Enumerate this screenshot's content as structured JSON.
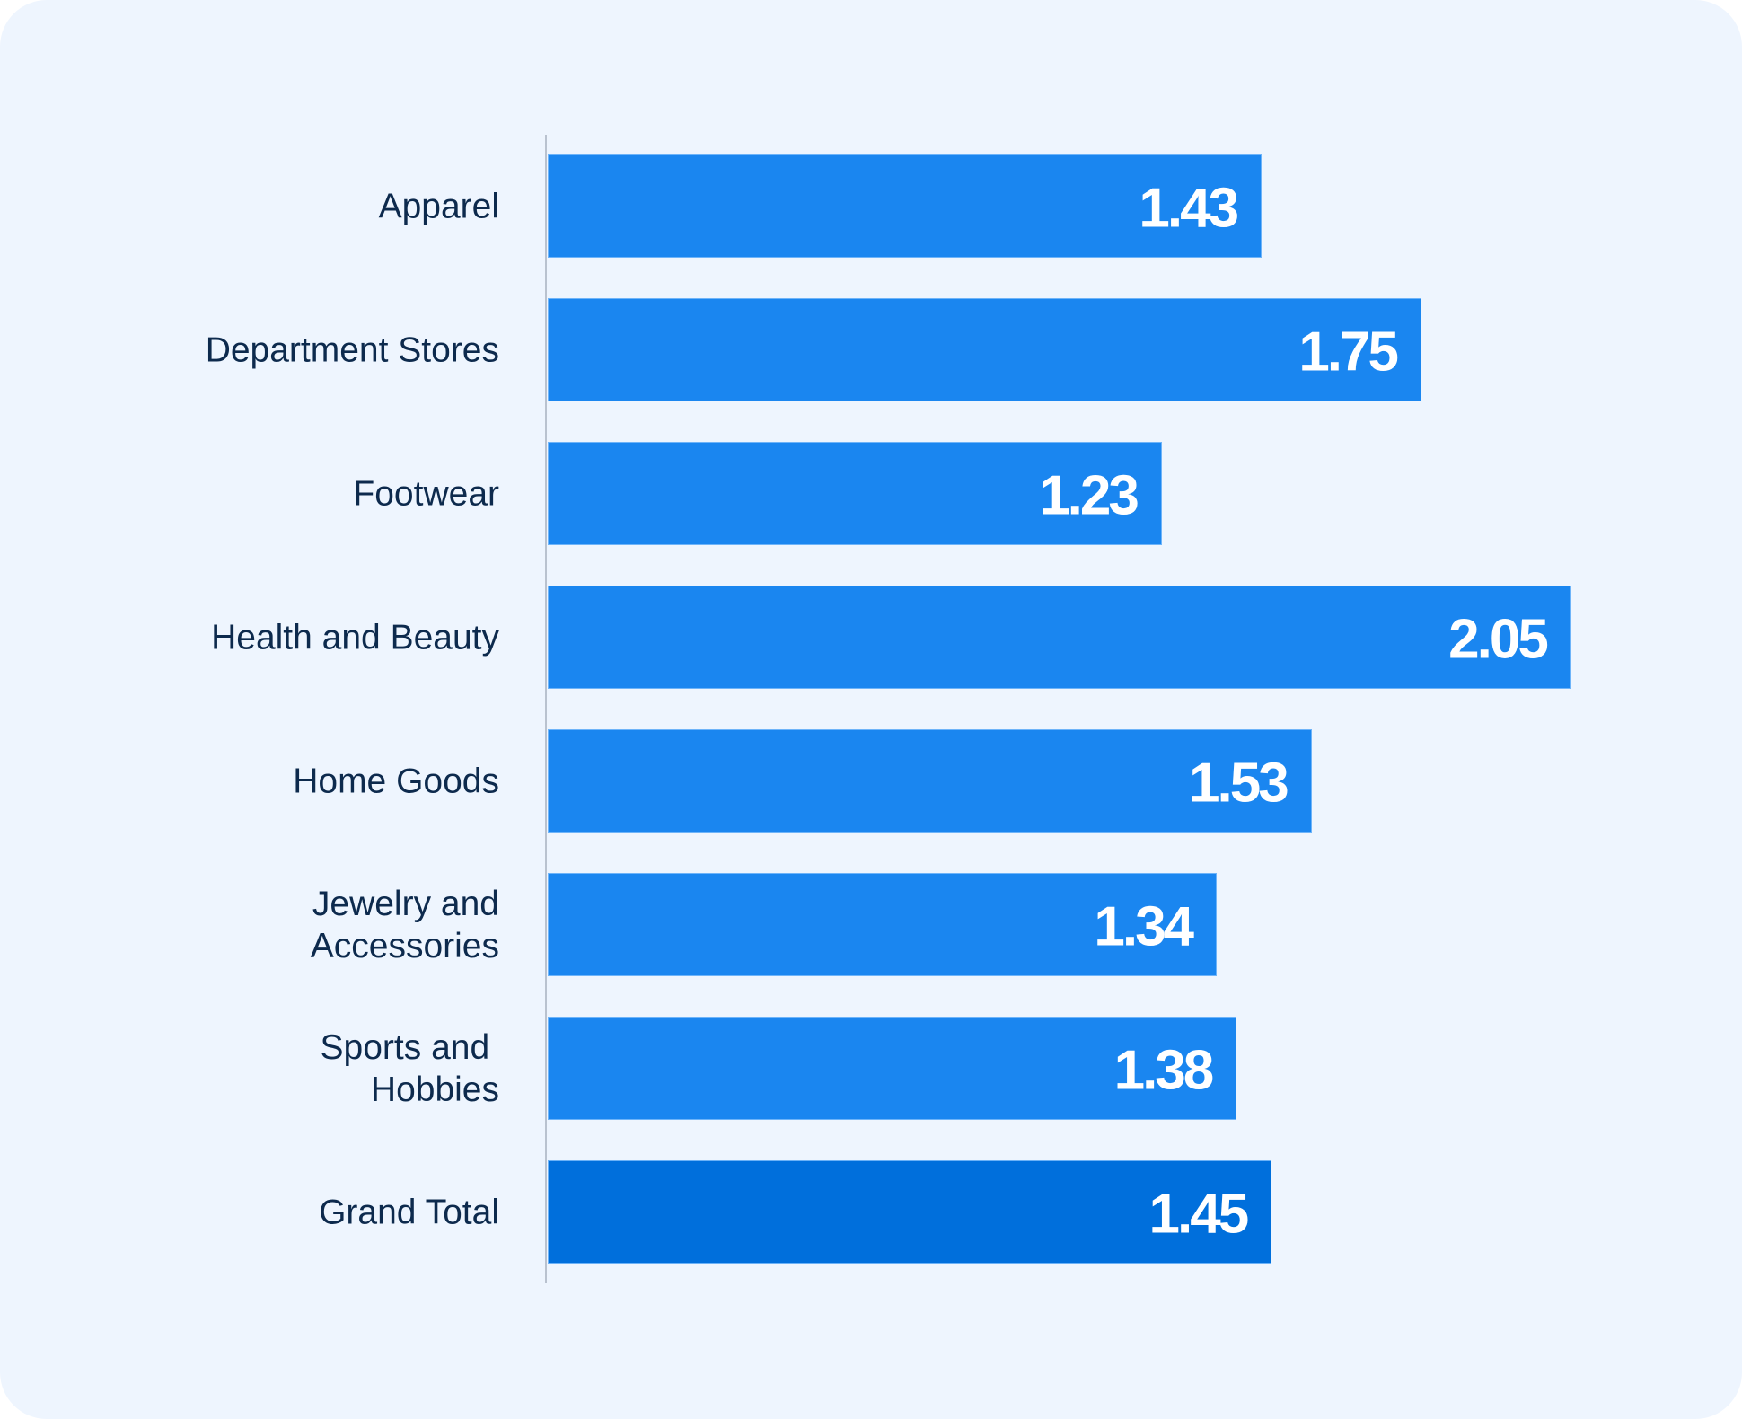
{
  "chart_data": {
    "type": "bar",
    "orientation": "horizontal",
    "title": "",
    "xlabel": "",
    "ylabel": "",
    "categories": [
      "Apparel",
      "Department Stores",
      "Footwear",
      "Health and Beauty",
      "Home Goods",
      "Jewelry and\nAccessories",
      "Sports and \nHobbies",
      "Grand Total"
    ],
    "values": [
      1.43,
      1.75,
      1.23,
      2.05,
      1.53,
      1.34,
      1.38,
      1.45
    ],
    "data_labels": [
      "1.43",
      "1.75",
      "1.23",
      "2.05",
      "1.53",
      "1.34",
      "1.38",
      "1.45"
    ],
    "xlim": [
      0,
      2.1
    ],
    "grid": false,
    "legend": "none",
    "colors": {
      "bar": "#1a86f0",
      "highlight_bar": "#006fdc",
      "label_text": "#0d2a4d",
      "value_text": "#ffffff",
      "background": "#eef5fe",
      "axis": "#b9c2cf"
    },
    "highlight_index": 7
  }
}
